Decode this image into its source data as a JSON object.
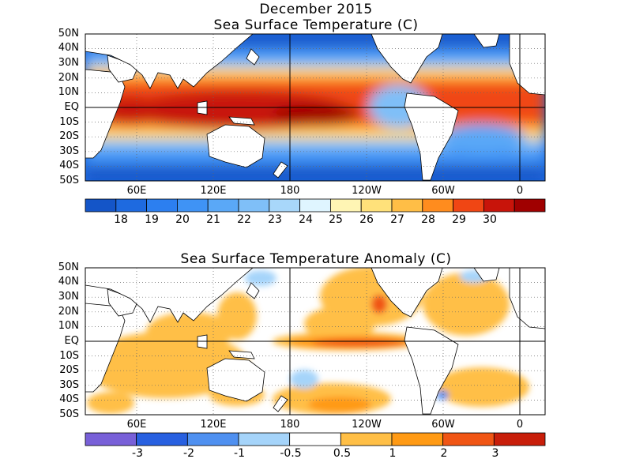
{
  "month_title": "December 2015",
  "panels": [
    {
      "title": "Sea Surface Temperature (C)",
      "lat_labels": [
        "50N",
        "40N",
        "30N",
        "20N",
        "10N",
        "EQ",
        "10S",
        "20S",
        "30S",
        "40S",
        "50S"
      ],
      "lon_labels": [
        "60E",
        "120E",
        "180",
        "120W",
        "60W",
        "0"
      ],
      "colorbar": {
        "labels": [
          "18",
          "19",
          "20",
          "21",
          "22",
          "23",
          "24",
          "25",
          "26",
          "27",
          "28",
          "29",
          "30"
        ],
        "colors": [
          "#1455c8",
          "#1e6ae0",
          "#2c7ff0",
          "#3f93f5",
          "#5aa8f7",
          "#7fbff8",
          "#a8d7fa",
          "#dff5ff",
          "#fff5b4",
          "#ffe17a",
          "#ffbe46",
          "#ff8c1e",
          "#f04614",
          "#c8140a",
          "#a00000"
        ]
      }
    },
    {
      "title": "Sea Surface Temperature Anomaly (C)",
      "lat_labels": [
        "50N",
        "40N",
        "30N",
        "20N",
        "10N",
        "EQ",
        "10S",
        "20S",
        "30S",
        "40S",
        "50S"
      ],
      "lon_labels": [
        "60E",
        "120E",
        "180",
        "120W",
        "60W",
        "0"
      ],
      "colorbar": {
        "labels": [
          "-3",
          "-2",
          "-1",
          "-0.5",
          "0.5",
          "1",
          "2",
          "3"
        ],
        "colors": [
          "#7860d8",
          "#2860e0",
          "#4f90f0",
          "#a5d4fa",
          "#ffffff",
          "#ffbf46",
          "#ff9a14",
          "#f05514",
          "#c81e0a"
        ]
      }
    }
  ]
}
